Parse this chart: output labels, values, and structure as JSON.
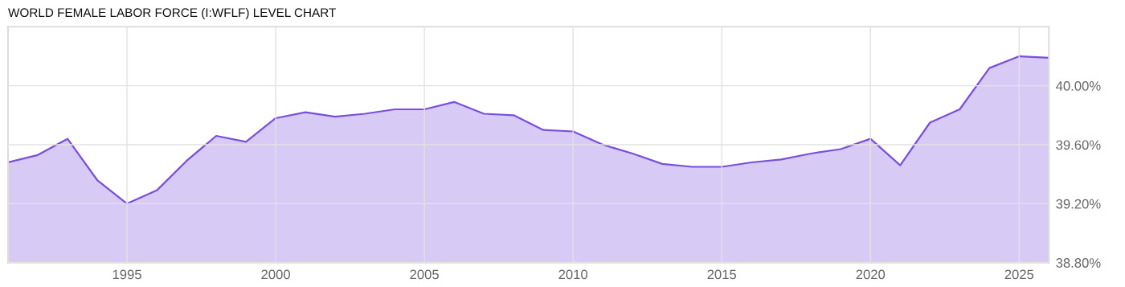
{
  "chart_data": {
    "type": "area",
    "title": "WORLD FEMALE LABOR FORCE (I:WFLF) LEVEL CHART",
    "x": [
      1991,
      1992,
      1993,
      1994,
      1995,
      1996,
      1997,
      1998,
      1999,
      2000,
      2001,
      2002,
      2003,
      2004,
      2005,
      2006,
      2007,
      2008,
      2009,
      2010,
      2011,
      2012,
      2013,
      2014,
      2015,
      2016,
      2017,
      2018,
      2019,
      2020,
      2021,
      2022,
      2023,
      2024,
      2025,
      2026
    ],
    "series": [
      {
        "color": "#7b4fd9",
        "values": [
          39.48,
          39.53,
          39.64,
          39.36,
          39.2,
          39.29,
          39.49,
          39.66,
          39.62,
          39.78,
          39.82,
          39.79,
          39.81,
          39.84,
          39.84,
          39.89,
          39.81,
          39.8,
          39.7,
          39.69,
          39.6,
          39.54,
          39.47,
          39.45,
          39.45,
          39.48,
          39.5,
          39.54,
          39.57,
          39.64,
          39.46,
          39.75,
          39.84,
          40.12,
          40.2,
          40.19
        ]
      }
    ],
    "xlim": [
      1991,
      2026
    ],
    "xticks": [
      1995,
      2000,
      2005,
      2010,
      2015,
      2020,
      2025
    ],
    "ylim": [
      38.8,
      40.4
    ],
    "yticks": [
      {
        "value": 38.8,
        "label": "38.80%"
      },
      {
        "value": 39.2,
        "label": "39.20%"
      },
      {
        "value": 39.6,
        "label": "39.60%"
      },
      {
        "value": 40.0,
        "label": "40.00%"
      }
    ],
    "grid": true,
    "legend": false
  }
}
